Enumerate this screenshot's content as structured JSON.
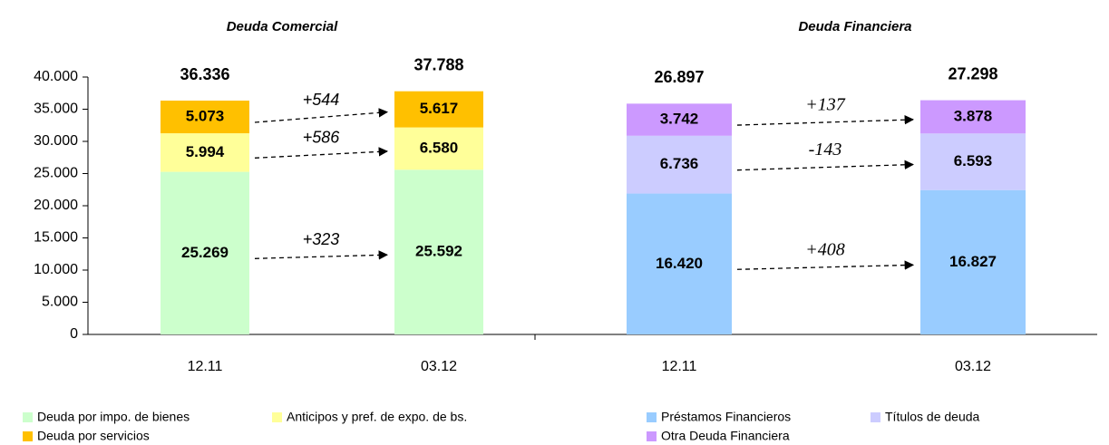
{
  "chart_data": [
    {
      "type": "bar",
      "stacked": true,
      "title": "Deuda Comercial",
      "categories": [
        "12.11",
        "03.12"
      ],
      "series": [
        {
          "name": "Deuda por impo. de bienes",
          "color": "#ccffcc",
          "values": [
            25269,
            25592
          ],
          "value_labels": [
            "25.269",
            "25.592"
          ]
        },
        {
          "name": "Anticipos y pref. de expo. de bs.",
          "color": "#ffff99",
          "values": [
            5994,
            6580
          ],
          "value_labels": [
            "5.994",
            "6.580"
          ]
        },
        {
          "name": "Deuda por servicios",
          "color": "#ffc000",
          "values": [
            5073,
            5617
          ],
          "value_labels": [
            "5.073",
            "5.617"
          ]
        }
      ],
      "totals": {
        "values": [
          36336,
          37788
        ],
        "value_labels": [
          "36.336",
          "37.788"
        ]
      },
      "annotations": [
        "+323",
        "+586",
        "+544"
      ],
      "ylim": [
        0,
        40000
      ],
      "yticks": [
        0,
        {
          "value": 5000,
          "label": "5.000"
        },
        {
          "value": 10000,
          "label": "10.000"
        },
        {
          "value": 15000,
          "label": "15.000"
        },
        {
          "value": 20000,
          "label": "20.000"
        },
        {
          "value": 25000,
          "label": "25.000"
        },
        {
          "value": 30000,
          "label": "30.000"
        },
        {
          "value": 35000,
          "label": "35.000"
        },
        {
          "value": 40000,
          "label": "40.000"
        }
      ]
    },
    {
      "type": "bar",
      "stacked": true,
      "title": "Deuda Financiera",
      "categories": [
        "12.11",
        "03.12"
      ],
      "series": [
        {
          "name": "Préstamos Financieros",
          "color": "#99ccff",
          "values": [
            16420,
            16827
          ],
          "value_labels": [
            "16.420",
            "16.827"
          ]
        },
        {
          "name": "Títulos de deuda",
          "color": "#ccccff",
          "values": [
            6736,
            6593
          ],
          "value_labels": [
            "6.736",
            "6.593"
          ]
        },
        {
          "name": "Otra Deuda Financiera",
          "color": "#cc99ff",
          "values": [
            3742,
            3878
          ],
          "value_labels": [
            "3.742",
            "3.878"
          ]
        }
      ],
      "totals": {
        "values": [
          26897,
          27298
        ],
        "value_labels": [
          "26.897",
          "27.298"
        ]
      },
      "annotations": [
        "+408",
        "-143",
        "+137"
      ],
      "ylim": [
        0,
        30000
      ]
    }
  ]
}
